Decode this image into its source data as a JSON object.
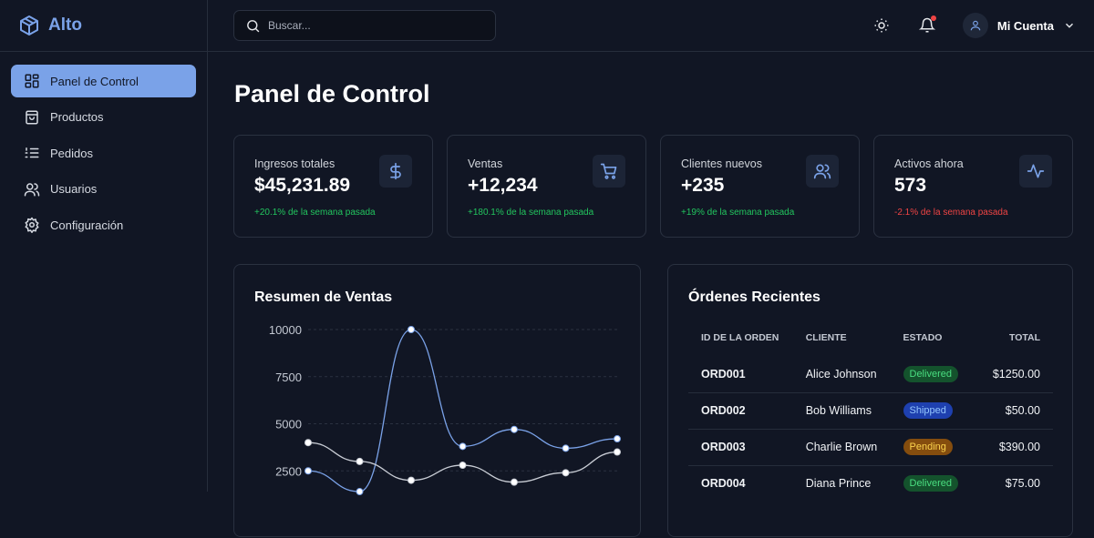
{
  "app": {
    "name": "Alto"
  },
  "sidebar": {
    "items": [
      {
        "label": "Panel de Control",
        "icon": "dashboard-icon"
      },
      {
        "label": "Productos",
        "icon": "bag-icon"
      },
      {
        "label": "Pedidos",
        "icon": "list-icon"
      },
      {
        "label": "Usuarios",
        "icon": "users-icon"
      },
      {
        "label": "Configuración",
        "icon": "gear-icon"
      }
    ]
  },
  "topbar": {
    "search_placeholder": "Buscar...",
    "account": "Mi Cuenta"
  },
  "page": {
    "title": "Panel de Control"
  },
  "stats": [
    {
      "label": "Ingresos totales",
      "value": "$45,231.89",
      "change": "+20.1% de la semana pasada",
      "positive": true,
      "icon": "dollar-icon"
    },
    {
      "label": "Ventas",
      "value": "+12,234",
      "change": "+180.1% de la semana pasada",
      "positive": true,
      "icon": "cart-icon"
    },
    {
      "label": "Clientes nuevos",
      "value": "+235",
      "change": "+19% de la semana pasada",
      "positive": true,
      "icon": "users-icon"
    },
    {
      "label": "Activos ahora",
      "value": "573",
      "change": "-2.1% de la semana pasada",
      "positive": false,
      "icon": "activity-icon"
    }
  ],
  "colors": {
    "accent": "#7aa2e8",
    "positive": "#22c55e",
    "negative": "#ef4444"
  },
  "chart_data": {
    "type": "line",
    "title": "Resumen de Ventas",
    "yticks": [
      2500,
      5000,
      7500,
      10000
    ],
    "ylim": [
      0,
      10000
    ],
    "grid": true,
    "series": [
      {
        "name": "series-1",
        "color": "#7aa2e8",
        "values": [
          2500,
          1400,
          10000,
          3800,
          4700,
          3700,
          4200
        ]
      },
      {
        "name": "series-2",
        "color": "#c8ccd4",
        "values": [
          4000,
          3000,
          2000,
          2800,
          1900,
          2400,
          3500
        ]
      }
    ]
  },
  "orders": {
    "title": "Órdenes Recientes",
    "headers": [
      "ID DE LA ORDEN",
      "CLIENTE",
      "ESTADO",
      "TOTAL"
    ],
    "rows": [
      {
        "id": "ORD001",
        "client": "Alice Johnson",
        "status": "Delivered",
        "total": "$1250.00"
      },
      {
        "id": "ORD002",
        "client": "Bob Williams",
        "status": "Shipped",
        "total": "$50.00"
      },
      {
        "id": "ORD003",
        "client": "Charlie Brown",
        "status": "Pending",
        "total": "$390.00"
      },
      {
        "id": "ORD004",
        "client": "Diana Prince",
        "status": "Delivered",
        "total": "$75.00"
      }
    ]
  }
}
